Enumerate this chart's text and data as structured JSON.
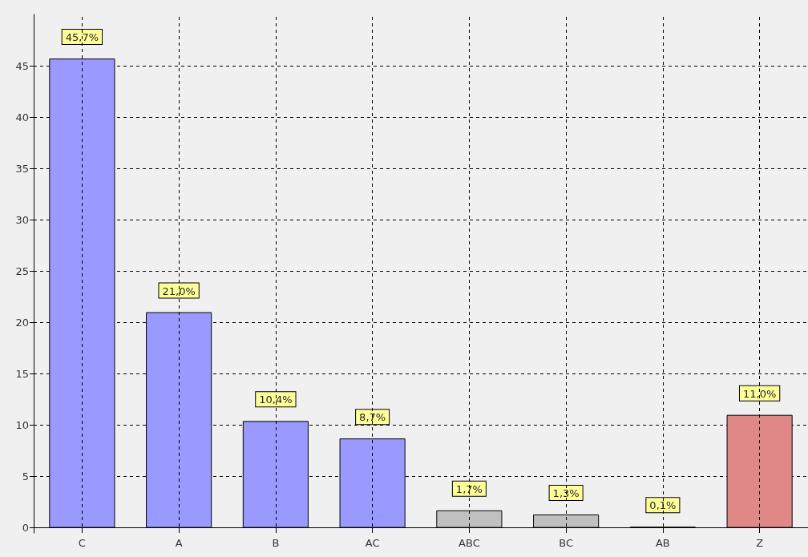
{
  "chart_data": {
    "type": "bar",
    "categories": [
      "C",
      "A",
      "B",
      "AC",
      "ABC",
      "BC",
      "AB",
      "Z"
    ],
    "values": [
      45.7,
      21.0,
      10.4,
      8.7,
      1.7,
      1.3,
      0.1,
      11.0
    ],
    "colors": [
      "#9999ff",
      "#9999ff",
      "#9999ff",
      "#9999ff",
      "#c0c0c0",
      "#c0c0c0",
      "#c0c0c0",
      "#e08888"
    ],
    "value_labels": [
      "45,7%",
      "21,0%",
      "10,4%",
      "8,7%",
      "1,7%",
      "1,3%",
      "0,1%",
      "11,0%"
    ],
    "ylim": [
      -0.5,
      50
    ],
    "yticks": [
      0,
      5,
      10,
      15,
      20,
      25,
      30,
      35,
      40,
      45
    ],
    "grid": true
  }
}
